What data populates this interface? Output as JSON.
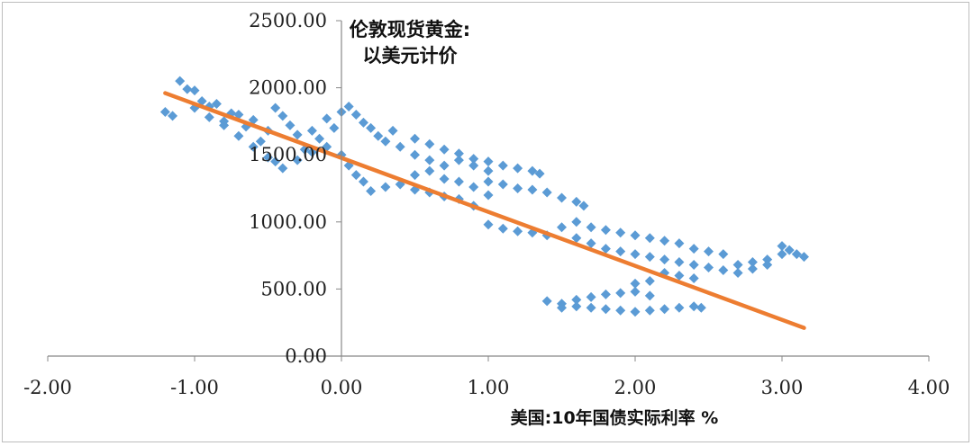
{
  "chart_data": {
    "type": "scatter",
    "ylabel_lines": [
      "伦敦现货黄金:",
      "以美元计价"
    ],
    "xlabel": "美国:10年国债实际利率 %",
    "xlim": [
      -2,
      4
    ],
    "ylim": [
      0,
      2500
    ],
    "x_ticks": [
      -2,
      -1,
      0,
      1,
      2,
      3,
      4
    ],
    "y_ticks": [
      0,
      500,
      1000,
      1500,
      2000,
      2500
    ],
    "x_tick_labels": [
      "-2.00",
      "-1.00",
      "0.00",
      "1.00",
      "2.00",
      "3.00",
      "4.00"
    ],
    "y_tick_labels": [
      "0.00",
      "500.00",
      "1000.00",
      "1500.00",
      "2000.00",
      "2500.00"
    ],
    "grid": false,
    "legend": "none",
    "colors": {
      "points": "#5b9bd5",
      "trend": "#ed7d31",
      "axis": "#888888"
    },
    "series": [
      {
        "marker": "diamond",
        "points": [
          [
            -1.2,
            1820
          ],
          [
            -1.15,
            1790
          ],
          [
            -1.1,
            2050
          ],
          [
            -1.05,
            1990
          ],
          [
            -1.0,
            1980
          ],
          [
            -0.95,
            1900
          ],
          [
            -0.9,
            1860
          ],
          [
            -0.85,
            1880
          ],
          [
            -0.8,
            1750
          ],
          [
            -0.75,
            1810
          ],
          [
            -0.7,
            1800
          ],
          [
            -0.65,
            1710
          ],
          [
            -0.6,
            1760
          ],
          [
            -0.55,
            1600
          ],
          [
            -0.5,
            1680
          ],
          [
            -0.45,
            1850
          ],
          [
            -0.4,
            1790
          ],
          [
            -0.35,
            1720
          ],
          [
            -0.3,
            1650
          ],
          [
            -0.25,
            1540
          ],
          [
            -0.2,
            1680
          ],
          [
            -0.15,
            1620
          ],
          [
            -0.1,
            1770
          ],
          [
            -0.05,
            1700
          ],
          [
            0.0,
            1820
          ],
          [
            0.05,
            1860
          ],
          [
            0.1,
            1800
          ],
          [
            0.15,
            1740
          ],
          [
            0.2,
            1700
          ],
          [
            0.25,
            1640
          ],
          [
            0.3,
            1600
          ],
          [
            0.35,
            1680
          ],
          [
            0.4,
            1560
          ],
          [
            -1.0,
            1850
          ],
          [
            -0.9,
            1780
          ],
          [
            -0.8,
            1720
          ],
          [
            -0.7,
            1640
          ],
          [
            -0.6,
            1560
          ],
          [
            -0.5,
            1480
          ],
          [
            -0.45,
            1450
          ],
          [
            -0.4,
            1400
          ],
          [
            -0.3,
            1460
          ],
          [
            -0.2,
            1520
          ],
          [
            -0.1,
            1560
          ],
          [
            0.0,
            1500
          ],
          [
            0.05,
            1420
          ],
          [
            0.1,
            1350
          ],
          [
            0.15,
            1300
          ],
          [
            0.2,
            1230
          ],
          [
            0.3,
            1260
          ],
          [
            0.4,
            1280
          ],
          [
            0.5,
            1240
          ],
          [
            0.6,
            1220
          ],
          [
            0.7,
            1190
          ],
          [
            0.8,
            1170
          ],
          [
            0.9,
            1120
          ],
          [
            0.5,
            1350
          ],
          [
            0.6,
            1380
          ],
          [
            0.7,
            1320
          ],
          [
            0.8,
            1300
          ],
          [
            0.9,
            1260
          ],
          [
            1.0,
            1200
          ],
          [
            0.5,
            1500
          ],
          [
            0.6,
            1460
          ],
          [
            0.7,
            1420
          ],
          [
            0.8,
            1460
          ],
          [
            0.9,
            1420
          ],
          [
            1.0,
            1380
          ],
          [
            0.5,
            1620
          ],
          [
            0.6,
            1580
          ],
          [
            0.7,
            1540
          ],
          [
            0.8,
            1510
          ],
          [
            0.9,
            1470
          ],
          [
            1.0,
            1450
          ],
          [
            1.1,
            1420
          ],
          [
            1.2,
            1400
          ],
          [
            1.3,
            1380
          ],
          [
            1.35,
            1360
          ],
          [
            1.0,
            1300
          ],
          [
            1.1,
            1280
          ],
          [
            1.2,
            1250
          ],
          [
            1.3,
            1240
          ],
          [
            1.4,
            1220
          ],
          [
            1.5,
            1180
          ],
          [
            1.6,
            1150
          ],
          [
            1.65,
            1120
          ],
          [
            1.0,
            980
          ],
          [
            1.1,
            950
          ],
          [
            1.2,
            930
          ],
          [
            1.3,
            920
          ],
          [
            1.4,
            900
          ],
          [
            1.5,
            960
          ],
          [
            1.6,
            1000
          ],
          [
            1.7,
            960
          ],
          [
            1.8,
            940
          ],
          [
            1.9,
            920
          ],
          [
            2.0,
            900
          ],
          [
            2.1,
            880
          ],
          [
            2.2,
            860
          ],
          [
            2.3,
            840
          ],
          [
            2.4,
            800
          ],
          [
            1.6,
            880
          ],
          [
            1.7,
            840
          ],
          [
            1.8,
            800
          ],
          [
            1.9,
            780
          ],
          [
            2.0,
            760
          ],
          [
            2.1,
            740
          ],
          [
            2.2,
            720
          ],
          [
            2.3,
            700
          ],
          [
            2.4,
            680
          ],
          [
            2.5,
            660
          ],
          [
            2.6,
            640
          ],
          [
            2.7,
            620
          ],
          [
            2.8,
            650
          ],
          [
            2.9,
            720
          ],
          [
            3.0,
            760
          ],
          [
            3.05,
            790
          ],
          [
            3.1,
            760
          ],
          [
            3.15,
            740
          ],
          [
            2.7,
            680
          ],
          [
            2.8,
            700
          ],
          [
            2.9,
            680
          ],
          [
            3.0,
            820
          ],
          [
            2.5,
            780
          ],
          [
            2.6,
            760
          ],
          [
            2.2,
            620
          ],
          [
            2.3,
            600
          ],
          [
            2.4,
            580
          ],
          [
            2.1,
            560
          ],
          [
            2.0,
            540
          ],
          [
            1.4,
            410
          ],
          [
            1.5,
            390
          ],
          [
            1.6,
            420
          ],
          [
            1.7,
            440
          ],
          [
            1.8,
            460
          ],
          [
            1.9,
            470
          ],
          [
            2.0,
            480
          ],
          [
            2.1,
            450
          ],
          [
            1.5,
            360
          ],
          [
            1.6,
            370
          ],
          [
            1.7,
            360
          ],
          [
            1.8,
            350
          ],
          [
            1.9,
            340
          ],
          [
            2.0,
            330
          ],
          [
            2.1,
            340
          ],
          [
            2.2,
            350
          ],
          [
            2.3,
            360
          ],
          [
            2.4,
            370
          ],
          [
            2.45,
            360
          ]
        ]
      }
    ],
    "trendline": {
      "x": [
        -1.2,
        3.15
      ],
      "y": [
        1960,
        210
      ]
    }
  }
}
